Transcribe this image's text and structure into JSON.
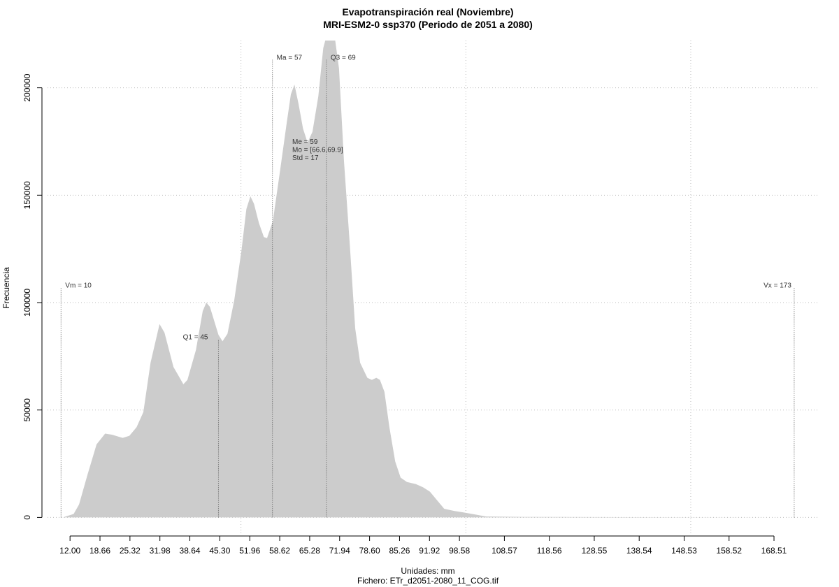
{
  "chart_data": {
    "type": "area",
    "title": "Evapotranspiración real (Noviembre)",
    "subtitle": "MRI-ESM2-0 ssp370 (Periodo de 2051 a 2080)",
    "x_label": "Unidades: mm",
    "caption": "Fichero: ETr_d2051-2080_11_COG.tif",
    "y_label": "Frecuencia",
    "color": "#cccccc",
    "x": [
      10.4,
      12.8,
      14,
      15.9,
      17.9,
      19.8,
      21.3,
      23.7,
      25.2,
      26.8,
      28.3,
      29.9,
      31.9,
      33,
      35,
      37.2,
      38.1,
      40,
      41.5,
      42.3,
      43.1,
      45,
      45.9,
      47,
      48.5,
      50.1,
      51.2,
      52.1,
      52.9,
      54,
      55.1,
      55.8,
      57.1,
      58.6,
      60.2,
      61.1,
      61.9,
      62.8,
      63.8,
      64.8,
      65.9,
      67.2,
      68.3,
      69.5,
      70.7,
      71.8,
      72.9,
      74.2,
      75.4,
      76.5,
      78.1,
      79.1,
      80.1,
      80.9,
      81.9,
      83,
      84.3,
      85.5,
      86.9,
      88.9,
      90.5,
      92,
      93.6,
      95.2,
      97.5,
      99.8,
      102.2,
      104.5,
      113,
      172.1
    ],
    "y": [
      0,
      1600,
      6000,
      20000,
      34000,
      39000,
      38500,
      37000,
      38000,
      42000,
      49000,
      72000,
      90000,
      86000,
      70000,
      62000,
      64000,
      78000,
      96000,
      100000,
      98000,
      85000,
      82000,
      85500,
      101000,
      124000,
      143500,
      149500,
      146000,
      137000,
      130500,
      130000,
      138000,
      160000,
      184000,
      197000,
      201500,
      192500,
      181000,
      174500,
      179500,
      196000,
      218500,
      228000,
      226000,
      209000,
      166000,
      127000,
      88000,
      72000,
      65000,
      64000,
      65000,
      64000,
      58500,
      42000,
      26000,
      18500,
      16500,
      15500,
      14000,
      12000,
      8000,
      4000,
      3000,
      2200,
      1300,
      400,
      200,
      0
    ],
    "xlim": [
      7,
      178.3
    ],
    "ylim": [
      -8000,
      222000
    ],
    "xticks": [
      {
        "value": 12,
        "label": "12.00"
      },
      18.66,
      25.32,
      31.98,
      38.64,
      {
        "value": 45.3,
        "label": "45.30"
      },
      51.96,
      58.62,
      65.28,
      71.94,
      {
        "value": 78.6,
        "label": "78.60"
      },
      85.26,
      91.92,
      98.58,
      108.57,
      118.56,
      128.55,
      138.54,
      148.53,
      158.52,
      168.51
    ],
    "yticks": [
      0,
      50000,
      100000,
      150000,
      200000
    ],
    "xgrid": [
      50,
      100,
      150
    ],
    "grid": true,
    "annotations": [
      {
        "text": "Vm = 10",
        "x": 10
      },
      {
        "text": "Q1 = 45",
        "x": 45
      },
      {
        "text": "Ma = 57",
        "x": 57
      },
      {
        "text": "Q3 = 69",
        "x": 69
      },
      {
        "text": "Vx = 173",
        "x": 173
      }
    ],
    "stats": [
      "Me = 59",
      "Mo = [66.6,69.9]",
      "Std = 17"
    ]
  }
}
